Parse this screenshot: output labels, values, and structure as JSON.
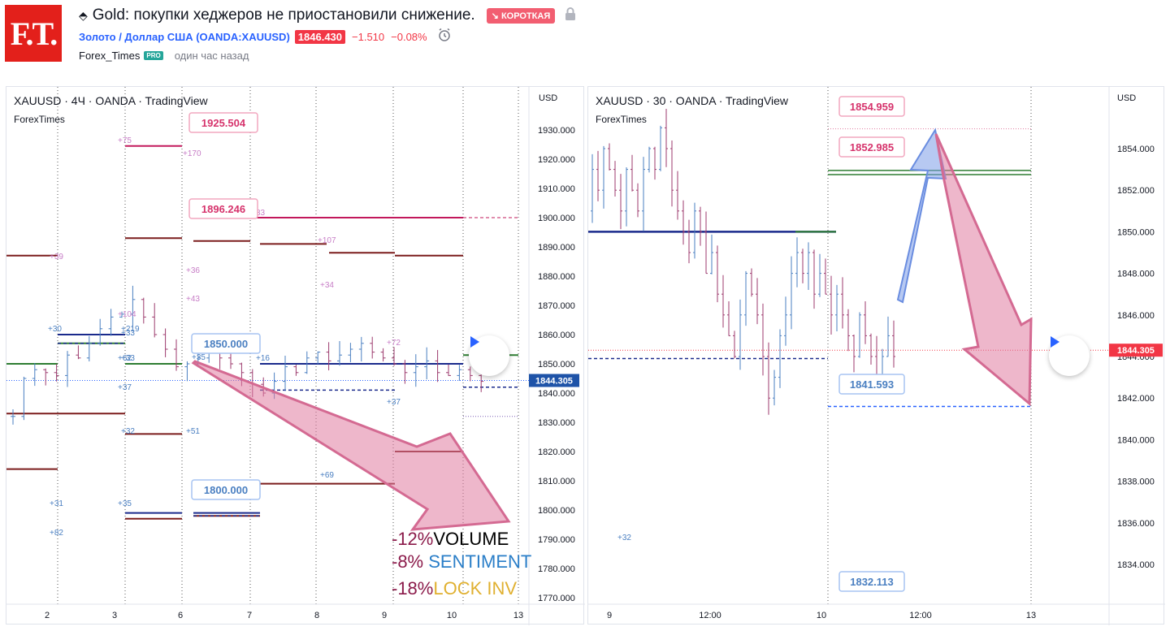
{
  "header": {
    "logo_text": "F.T.",
    "direction_icon": "⬘",
    "title": "Gold: покупки хеджеров не приостановили снижение.",
    "badge": "↘ КОРОТКАЯ",
    "lock_icon": "lock-icon",
    "symbol_link": "Золото / Доллар США (OANDA:XAUUSD)",
    "price": "1846.430",
    "change": "−1.510",
    "change_pct": "−0.08%",
    "author": "Forex_Times",
    "pro_badge": "PRO",
    "time_ago": "один час назад"
  },
  "left_chart": {
    "title": "XAUUSD · 4Ч · OANDA · TradingView",
    "source": "ForexTimes",
    "currency": "USD",
    "y_ticks": [
      "1930.000",
      "1920.000",
      "1910.000",
      "1900.000",
      "1890.000",
      "1880.000",
      "1870.000",
      "1860.000",
      "1850.000",
      "1840.000",
      "1830.000",
      "1820.000",
      "1810.000",
      "1800.000",
      "1790.000",
      "1780.000",
      "1770.000"
    ],
    "x_ticks": [
      "2",
      "3",
      "6",
      "7",
      "8",
      "9",
      "10",
      "13"
    ],
    "last_price": "1844.305",
    "callouts": [
      "1925.504",
      "1896.246",
      "1850.000",
      "1800.000"
    ],
    "small_labels": [
      "+75",
      "+170",
      "+39",
      "+36",
      "+43",
      "+34",
      "+107",
      "+33",
      "+104",
      "+30",
      "+219",
      "+33",
      "+35",
      "+16",
      "+72",
      "+37",
      "+37",
      "+32",
      "+51",
      "+69",
      "+31",
      "+35",
      "+82",
      "+62",
      "33"
    ],
    "stats": [
      {
        "pct": "-12%",
        "label": "VOLUME"
      },
      {
        "pct": "-8%",
        "label": " SENTIMENT"
      },
      {
        "pct": "-18%",
        "label": "LOCK INV"
      }
    ]
  },
  "right_chart": {
    "title": "XAUUSD · 30 · OANDA · TradingView",
    "source": "ForexTimes",
    "currency": "USD",
    "y_ticks": [
      "1854.000",
      "1852.000",
      "1850.000",
      "1848.000",
      "1846.000",
      "1844.000",
      "1842.000",
      "1840.000",
      "1838.000",
      "1836.000",
      "1834.000"
    ],
    "x_ticks": [
      "9",
      "12:00",
      "10",
      "12:00",
      "13"
    ],
    "last_price": "1844.305",
    "callouts": [
      "1854.959",
      "1852.985",
      "1841.593",
      "1832.113"
    ],
    "small_labels": [
      "+32"
    ]
  },
  "colors": {
    "accent": "#2962ff",
    "bear": "#f23645",
    "arrow_pink": "#e07ba0",
    "arrow_blue": "#7c9ce8",
    "level_dark": "#7b1c1c",
    "level_navy": "#1a2a8c",
    "level_green": "#2e7d32",
    "label_pink": "#d6336c",
    "label_blue": "#4a7fc1",
    "stat_pct": "#8b1a4a",
    "stat_sentiment": "#2a7ec8",
    "stat_lock": "#e0b030"
  }
}
